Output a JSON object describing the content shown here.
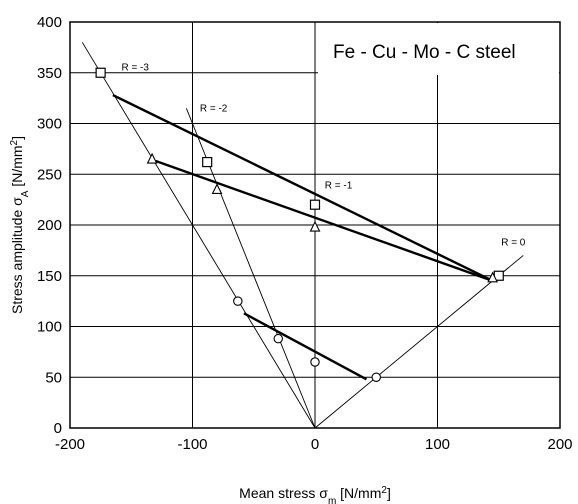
{
  "chart_data": {
    "type": "scatter",
    "title": "Fe - Cu - Mo - C steel",
    "xlabel": "Mean stress σ",
    "xlabel_sub": "m",
    "xlabel_unit": " [N/mm",
    "xlabel_unit_sup": "2",
    "xlabel_unit_end": "]",
    "ylabel": "Stress amplitude σ",
    "ylabel_sub": "A",
    "ylabel_unit": " [N/mm",
    "ylabel_unit_sup": "2",
    "ylabel_unit_end": "]",
    "xlim": [
      -200,
      200
    ],
    "ylim": [
      0,
      400
    ],
    "xticks": [
      -200,
      -100,
      0,
      100,
      200
    ],
    "xtick_labels": [
      "-200",
      "-100",
      "0",
      "100",
      "200"
    ],
    "yticks": [
      0,
      50,
      100,
      150,
      200,
      250,
      300,
      350,
      400
    ],
    "ytick_labels": [
      "0",
      "50",
      "100",
      "150",
      "200",
      "250",
      "300",
      "350",
      "400"
    ],
    "grid": true,
    "r_lines": [
      {
        "label": "R = -3",
        "x": [
          -190,
          0
        ],
        "y": [
          380,
          0
        ],
        "label_pos": [
          -158,
          352
        ]
      },
      {
        "label": "R = -2",
        "x": [
          -105,
          0
        ],
        "y": [
          315,
          0
        ],
        "label_pos": [
          -94,
          312
        ]
      },
      {
        "label": "R = -1",
        "x": [
          0,
          0
        ],
        "y": [
          0,
          220
        ],
        "label_pos": [
          8,
          236
        ]
      },
      {
        "label": "R = 0",
        "x": [
          0,
          170
        ],
        "y": [
          0,
          170
        ],
        "label_pos": [
          152,
          180
        ]
      }
    ],
    "series": [
      {
        "marker": "square",
        "values": [
          [
            -175,
            350
          ],
          [
            -88,
            262
          ],
          [
            0,
            220
          ],
          [
            150,
            150
          ]
        ],
        "fit": {
          "x": [
            -165,
            145
          ],
          "y": [
            328,
            145
          ]
        }
      },
      {
        "marker": "triangle",
        "values": [
          [
            -133,
            265
          ],
          [
            -80,
            235
          ],
          [
            0,
            198
          ],
          [
            145,
            148
          ]
        ],
        "fit": {
          "x": [
            -130,
            145
          ],
          "y": [
            263,
            145
          ]
        }
      },
      {
        "marker": "circle",
        "values": [
          [
            -63,
            125
          ],
          [
            -30,
            88
          ],
          [
            0,
            65
          ],
          [
            50,
            50
          ]
        ],
        "fit": {
          "x": [
            -58,
            42
          ],
          "y": [
            113,
            48
          ]
        }
      }
    ]
  }
}
